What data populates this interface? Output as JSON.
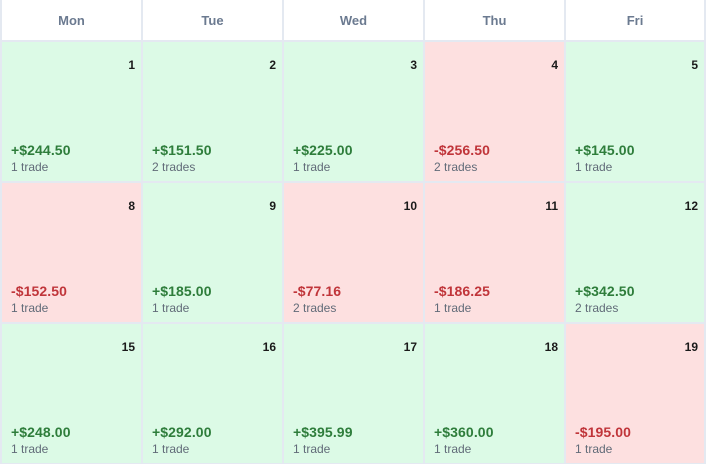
{
  "calendar": {
    "headers": [
      "Mon",
      "Tue",
      "Wed",
      "Thu",
      "Fri"
    ],
    "colors": {
      "profit_bg": "#dcfae6",
      "loss_bg": "#fde0e0",
      "profit_text": "#2e7d3b",
      "loss_text": "#c0353a"
    },
    "weeks": [
      [
        {
          "day": "1",
          "pnl": "+$244.50",
          "trades": "1 trade",
          "status": "profit"
        },
        {
          "day": "2",
          "pnl": "+$151.50",
          "trades": "2 trades",
          "status": "profit"
        },
        {
          "day": "3",
          "pnl": "+$225.00",
          "trades": "1 trade",
          "status": "profit"
        },
        {
          "day": "4",
          "pnl": "-$256.50",
          "trades": "2 trades",
          "status": "loss"
        },
        {
          "day": "5",
          "pnl": "+$145.00",
          "trades": "1 trade",
          "status": "profit"
        }
      ],
      [
        {
          "day": "8",
          "pnl": "-$152.50",
          "trades": "1 trade",
          "status": "loss"
        },
        {
          "day": "9",
          "pnl": "+$185.00",
          "trades": "1 trade",
          "status": "profit"
        },
        {
          "day": "10",
          "pnl": "-$77.16",
          "trades": "2 trades",
          "status": "loss"
        },
        {
          "day": "11",
          "pnl": "-$186.25",
          "trades": "1 trade",
          "status": "loss"
        },
        {
          "day": "12",
          "pnl": "+$342.50",
          "trades": "2 trades",
          "status": "profit"
        }
      ],
      [
        {
          "day": "15",
          "pnl": "+$248.00",
          "trades": "1 trade",
          "status": "profit"
        },
        {
          "day": "16",
          "pnl": "+$292.00",
          "trades": "1 trade",
          "status": "profit"
        },
        {
          "day": "17",
          "pnl": "+$395.99",
          "trades": "1 trade",
          "status": "profit"
        },
        {
          "day": "18",
          "pnl": "+$360.00",
          "trades": "1 trade",
          "status": "profit"
        },
        {
          "day": "19",
          "pnl": "-$195.00",
          "trades": "1 trade",
          "status": "loss"
        }
      ]
    ]
  }
}
